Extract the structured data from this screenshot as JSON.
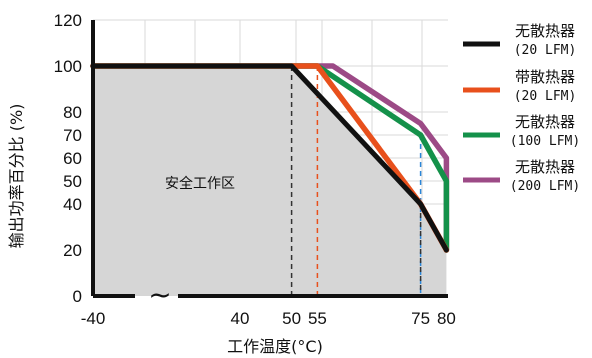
{
  "chart_data": {
    "type": "line",
    "xlabel": "工作温度(°C)",
    "ylabel": "输出功率百分比 (%)",
    "xlim": [
      -40,
      80
    ],
    "ylim": [
      0,
      120
    ],
    "x_ticks": [
      {
        "value": 40,
        "label": "40"
      },
      {
        "value": 50,
        "label": "50"
      },
      {
        "value": 55,
        "label": "55"
      },
      {
        "value": 75,
        "label": "75"
      },
      {
        "value": 80,
        "label": "80"
      }
    ],
    "x_start_label": "-40",
    "axis_break_symbol": "~",
    "y_ticks": [
      0,
      20,
      40,
      50,
      60,
      70,
      80,
      100,
      120
    ],
    "safe_area_label": "安全工作区",
    "series": [
      {
        "name": "无散热器",
        "sub": "(20 LFM)",
        "color": "#111111",
        "points": [
          [
            -40,
            100
          ],
          [
            50,
            100
          ],
          [
            75,
            40
          ],
          [
            80,
            20
          ]
        ]
      },
      {
        "name": "带散热器",
        "sub": "(20 LFM)",
        "color": "#e8501c",
        "points": [
          [
            -40,
            100
          ],
          [
            55,
            100
          ],
          [
            75,
            40
          ],
          [
            80,
            20
          ]
        ]
      },
      {
        "name": "无散热器",
        "sub": "(100 LFM)",
        "color": "#14914a",
        "points": [
          [
            -40,
            100
          ],
          [
            55,
            100
          ],
          [
            75,
            70
          ],
          [
            80,
            50
          ],
          [
            80,
            20
          ]
        ]
      },
      {
        "name": "无散热器",
        "sub": "(200 LFM)",
        "color": "#9c4a86",
        "points": [
          [
            -40,
            100
          ],
          [
            58,
            100
          ],
          [
            75,
            75
          ],
          [
            80,
            60
          ],
          [
            80,
            20
          ]
        ]
      }
    ],
    "guide_lines": [
      {
        "x": 50,
        "y": 100,
        "color": "#333333"
      },
      {
        "x": 55,
        "y": 100,
        "color": "#e8501c"
      },
      {
        "x": 75,
        "y": 70,
        "color": "#2b86d8"
      },
      {
        "x": 75,
        "y": 40,
        "color": "#333333"
      }
    ]
  }
}
